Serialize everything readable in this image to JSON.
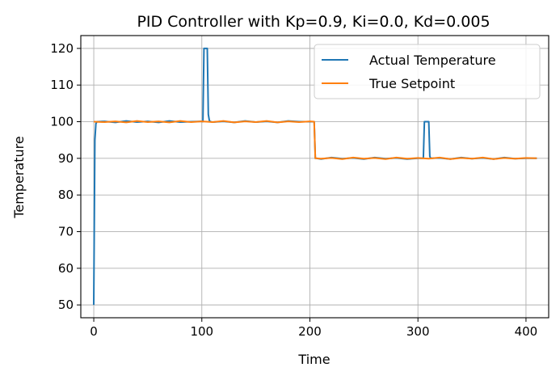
{
  "chart_data": {
    "type": "line",
    "title": "PID Controller with Kp=0.9, Ki=0.0, Kd=0.005",
    "xlabel": "Time",
    "ylabel": "Temperature",
    "xlim": [
      -12,
      421
    ],
    "ylim": [
      46.5,
      123.5
    ],
    "xticks": [
      0,
      100,
      200,
      300,
      400
    ],
    "yticks": [
      50,
      60,
      70,
      80,
      90,
      100,
      110,
      120
    ],
    "grid": true,
    "legend_position": "top-right",
    "series": [
      {
        "name": "Actual Temperature",
        "color": "#1f77b4",
        "x": [
          0,
          1,
          2,
          3,
          4,
          10,
          20,
          30,
          40,
          50,
          60,
          70,
          80,
          90,
          100,
          101,
          102,
          103,
          104,
          105,
          106,
          107,
          108,
          110,
          120,
          130,
          140,
          150,
          160,
          170,
          180,
          190,
          200,
          204,
          205,
          206,
          210,
          220,
          230,
          240,
          250,
          260,
          270,
          280,
          290,
          300,
          305,
          306,
          307,
          308,
          309,
          310,
          311,
          312,
          320,
          330,
          340,
          350,
          360,
          370,
          380,
          390,
          400,
          410
        ],
        "y": [
          50,
          95,
          99.5,
          100,
          100,
          100.1,
          99.8,
          100.2,
          99.9,
          100.1,
          99.8,
          100.2,
          99.9,
          100,
          100.1,
          100,
          120,
          120,
          120,
          120,
          102,
          100.3,
          100,
          99.9,
          100.1,
          99.8,
          100.2,
          99.9,
          100.1,
          99.8,
          100.2,
          100,
          100,
          100,
          90,
          90,
          89.8,
          90.2,
          89.9,
          90.1,
          89.8,
          90.2,
          89.9,
          90.1,
          89.8,
          90,
          90,
          100,
          100,
          100,
          100,
          100,
          90.5,
          90,
          90.1,
          89.8,
          90.2,
          89.9,
          90.1,
          89.8,
          90.2,
          89.9,
          90,
          90
        ]
      },
      {
        "name": "True Setpoint",
        "color": "#ff7f0e",
        "x": [
          0,
          10,
          20,
          30,
          40,
          50,
          60,
          70,
          80,
          90,
          100,
          110,
          120,
          130,
          140,
          150,
          160,
          170,
          180,
          190,
          200,
          204,
          205,
          206,
          210,
          220,
          230,
          240,
          250,
          260,
          270,
          280,
          290,
          300,
          310,
          320,
          330,
          340,
          350,
          360,
          370,
          380,
          390,
          400,
          410
        ],
        "y": [
          100,
          99.9,
          100.1,
          99.8,
          100.2,
          99.9,
          100.1,
          99.8,
          100.2,
          99.9,
          100.1,
          99.9,
          100.2,
          99.8,
          100.1,
          99.9,
          100.2,
          99.8,
          100.1,
          99.9,
          100.1,
          100,
          90,
          90,
          89.9,
          90.1,
          89.8,
          90.2,
          89.9,
          90.1,
          89.8,
          90.2,
          89.9,
          90.1,
          89.9,
          90.2,
          89.8,
          90.1,
          89.9,
          90.2,
          89.8,
          90.1,
          89.9,
          90.1,
          90
        ]
      }
    ]
  }
}
